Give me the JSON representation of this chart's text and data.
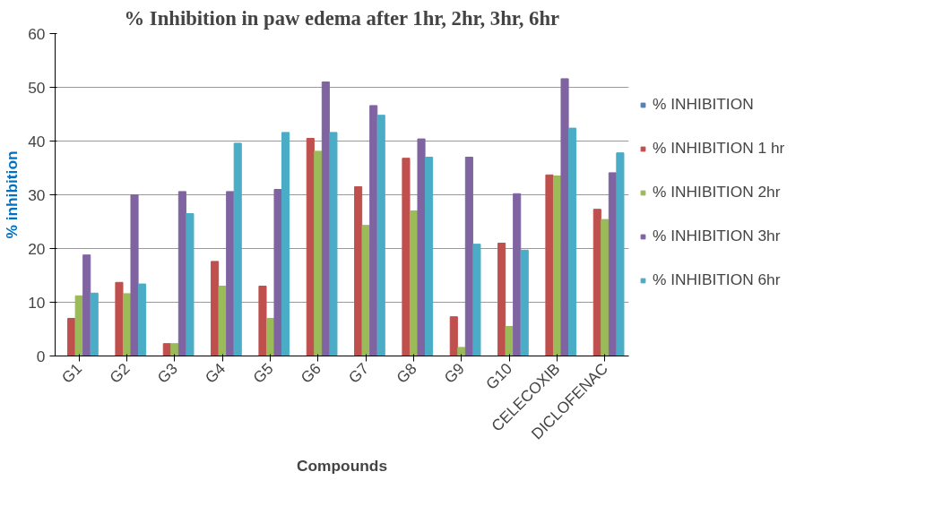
{
  "chart_data": {
    "type": "bar",
    "title": "% Inhibition in paw edema after 1hr, 2hr, 3hr, 6hr",
    "xlabel": "Compounds",
    "ylabel": "% inhibition",
    "categories": [
      "G1",
      "G2",
      "G3",
      "G4",
      "G5",
      "G6",
      "G7",
      "G8",
      "G9",
      "G10",
      "CELECOXIB",
      "DICLOFENAC"
    ],
    "series": [
      {
        "name": "% INHIBITION",
        "color": "#4f81bd",
        "values": [
          null,
          null,
          null,
          null,
          null,
          null,
          null,
          null,
          null,
          null,
          null,
          null
        ]
      },
      {
        "name": "% INHIBITION 1 hr",
        "color": "#c0504d",
        "values": [
          7,
          13.7,
          2.3,
          17.6,
          13,
          40.5,
          31.5,
          36.8,
          7.3,
          21,
          33.7,
          27.3
        ]
      },
      {
        "name": "% INHIBITION 2hr",
        "color": "#9bbb59",
        "values": [
          11.2,
          11.6,
          2.3,
          13,
          7,
          38.1,
          24.3,
          27,
          1.6,
          5.5,
          33.5,
          25.4
        ]
      },
      {
        "name": "% INHIBITION 3hr",
        "color": "#8064a2",
        "values": [
          18.8,
          30,
          30.6,
          30.6,
          31,
          51,
          46.6,
          40.4,
          37,
          30.2,
          51.6,
          34.1
        ]
      },
      {
        "name": "% INHIBITION 6hr",
        "color": "#4bacc6",
        "values": [
          11.7,
          13.4,
          26.5,
          39.6,
          41.6,
          41.6,
          44.8,
          37,
          20.8,
          19.7,
          42.4,
          37.8
        ]
      }
    ],
    "ylim": [
      0,
      60
    ],
    "yticks": [
      0,
      10,
      20,
      30,
      40,
      50,
      60
    ],
    "grid": "y",
    "legend": "right"
  }
}
